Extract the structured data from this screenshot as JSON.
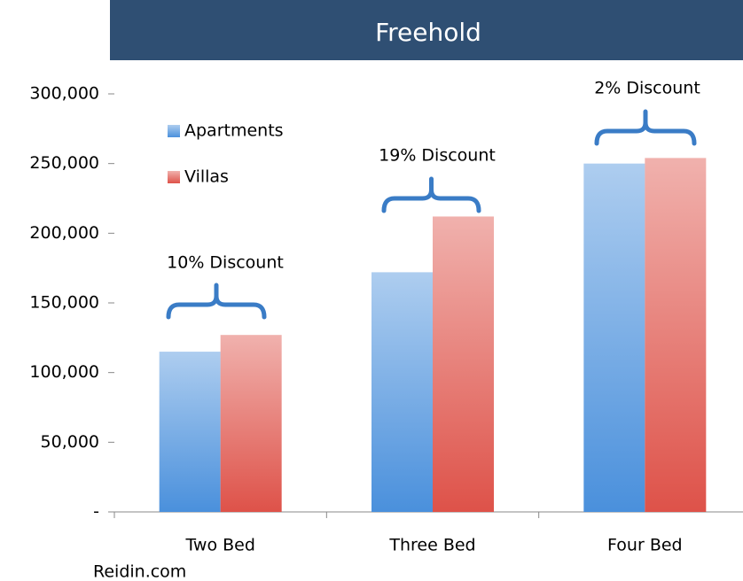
{
  "chart_data": {
    "type": "bar",
    "title": "Freehold",
    "categories": [
      "Two Bed",
      "Three Bed",
      "Four Bed"
    ],
    "series": [
      {
        "name": "Apartments",
        "color": "#4a90dc",
        "values": [
          115000,
          172000,
          250000
        ]
      },
      {
        "name": "Villas",
        "color": "#de5249",
        "values": [
          127000,
          212000,
          254000
        ]
      }
    ],
    "annotations": [
      "10% Discount",
      "19% Discount",
      "2% Discount"
    ],
    "ylim": [
      0,
      300000
    ],
    "yticks": [
      {
        "value": 0,
        "label": "-"
      },
      {
        "value": 50000,
        "label": "50,000"
      },
      {
        "value": 100000,
        "label": "100,000"
      },
      {
        "value": 150000,
        "label": "150,000"
      },
      {
        "value": 200000,
        "label": "200,000"
      },
      {
        "value": 250000,
        "label": "250,000"
      },
      {
        "value": 300000,
        "label": "300,000"
      }
    ],
    "grid": false,
    "legend": "upper left",
    "source": "Reidin.com"
  }
}
